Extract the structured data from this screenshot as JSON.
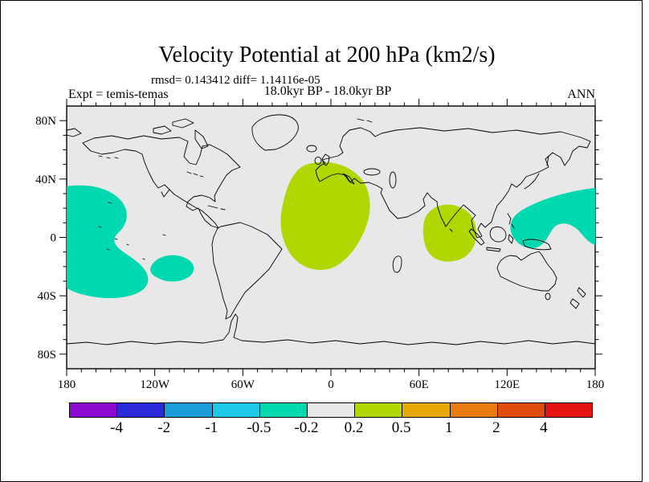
{
  "header": {
    "title": "Velocity Potential at 200 hPa (km2/s)",
    "stats_line": "rmsd= 0.143412 diff= 1.14116e-05",
    "period_line": "18.0kyr BP - 18.0kyr BP",
    "experiment_label": "Expt = temis-temas",
    "season_label": "ANN"
  },
  "chart_data": {
    "type": "heatmap",
    "subtype": "filled-contour anomaly map on equirectangular world projection",
    "title": "Velocity Potential at 200 hPa (km2/s)",
    "units": "km2/s",
    "rmsd": "0.143412",
    "diff": "1.14116e-05",
    "comparison": "18.0kyr BP - 18.0kyr BP",
    "experiment": "temis-temas",
    "season": "ANN",
    "x_axis": {
      "label_ticks": [
        "180",
        "120W",
        "60W",
        "0",
        "60E",
        "120E",
        "180"
      ],
      "range_deg_lon": [
        -180,
        180
      ],
      "minor_tick_step_deg": 10,
      "major_tick_step_deg": 60
    },
    "y_axis": {
      "label_ticks": [
        "80N",
        "40N",
        "0",
        "40S",
        "80S"
      ],
      "range_deg_lat": [
        -90,
        90
      ],
      "minor_tick_step_deg": 10,
      "major_tick_step_deg": 40
    },
    "colorbar": {
      "boundary_labels": [
        "-4",
        "-2",
        "-1",
        "-0.5",
        "-0.2",
        "0.2",
        "0.5",
        "1",
        "2",
        "4"
      ],
      "colors": [
        "#8c0ad0",
        "#2a2ad8",
        "#1c9cd8",
        "#20c8e8",
        "#00d8b0",
        "#e8e8e8",
        "#b0d800",
        "#e8a808",
        "#e87c10",
        "#e04c0c",
        "#e41414"
      ]
    },
    "map_background": "#e8e8e8",
    "coastline_color": "#000000",
    "region_fill": {
      "negative_band": "#00d8b0",
      "positive_band": "#b0d800"
    },
    "regions": [
      {
        "name": "central-south-pacific",
        "band": "-0.5 to -0.2",
        "approx_location": "180 to 130W, 35N to 45S"
      },
      {
        "name": "southeast-pacific",
        "band": "-0.5 to -0.2",
        "approx_location": "west of South America near 15S"
      },
      {
        "name": "west-pacific-maritime-continent",
        "band": "-0.5 to -0.2",
        "approx_location": "Borneo/Philippines eastward to 180, 35N to 10S"
      },
      {
        "name": "north-africa-europe",
        "band": "0.2 to 0.5",
        "approx_location": "25W to 25E, 50N to 20S"
      },
      {
        "name": "india-indian-ocean",
        "band": "0.2 to 0.5",
        "approx_location": "60E to 100E, 25N to 15S"
      }
    ]
  }
}
